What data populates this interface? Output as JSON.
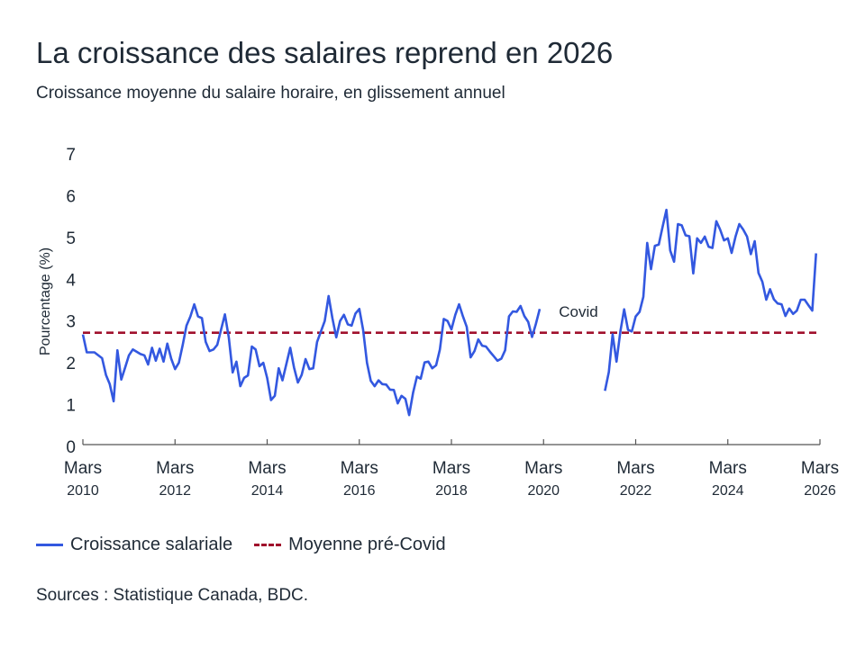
{
  "title": "La croissance des salaires reprend en 2026",
  "subtitle": "Croissance moyenne du salaire horaire, en glissement annuel",
  "source": "Sources : Statistique Canada, BDC.",
  "colors": {
    "series": "#3358e0",
    "average": "#a0102c",
    "axis": "#555555",
    "text": "#1f2a36"
  },
  "chart_data": {
    "type": "line",
    "ylabel": "Pourcentage (%)",
    "xlabel": "",
    "ylim": [
      0,
      7
    ],
    "xlim": [
      "2010-03",
      "2026-03"
    ],
    "yticks": [
      "0",
      "1",
      "2",
      "3",
      "4",
      "5",
      "6",
      "7"
    ],
    "xticks": [
      {
        "date": "2010-03",
        "label1": "Mars",
        "label2": "2010"
      },
      {
        "date": "2012-03",
        "label1": "Mars",
        "label2": "2012"
      },
      {
        "date": "2014-03",
        "label1": "Mars",
        "label2": "2014"
      },
      {
        "date": "2016-03",
        "label1": "Mars",
        "label2": "2016"
      },
      {
        "date": "2018-03",
        "label1": "Mars",
        "label2": "2018"
      },
      {
        "date": "2020-03",
        "label1": "Mars",
        "label2": "2020"
      },
      {
        "date": "2022-03",
        "label1": "Mars",
        "label2": "2022"
      },
      {
        "date": "2024-03",
        "label1": "Mars",
        "label2": "2024"
      },
      {
        "date": "2026-03",
        "label1": "Mars",
        "label2": "2026"
      }
    ],
    "grid": false,
    "legend_position": "bottom-left",
    "annotation": {
      "text": "Covid",
      "date": "2020-07",
      "y": 3.1
    },
    "average_line": {
      "name": "Moyenne pré-Covid",
      "value": 2.72
    },
    "series": [
      {
        "name": "Croissance salariale",
        "segments": [
          [
            [
              "2010-03",
              2.68
            ],
            [
              "2010-04",
              2.25
            ],
            [
              "2010-06",
              2.25
            ],
            [
              "2010-08",
              2.11
            ],
            [
              "2010-09",
              1.71
            ],
            [
              "2010-10",
              1.49
            ],
            [
              "2010-11",
              1.08
            ],
            [
              "2010-12",
              2.3
            ],
            [
              "2011-01",
              1.6
            ],
            [
              "2011-02",
              1.89
            ],
            [
              "2011-03",
              2.18
            ],
            [
              "2011-04",
              2.32
            ],
            [
              "2011-06",
              2.21
            ],
            [
              "2011-07",
              2.18
            ],
            [
              "2011-08",
              1.96
            ],
            [
              "2011-09",
              2.36
            ],
            [
              "2011-10",
              2.05
            ],
            [
              "2011-11",
              2.34
            ],
            [
              "2011-12",
              2.03
            ],
            [
              "2012-01",
              2.46
            ],
            [
              "2012-02",
              2.1
            ],
            [
              "2012-03",
              1.85
            ],
            [
              "2012-04",
              2.0
            ],
            [
              "2012-05",
              2.43
            ],
            [
              "2012-06",
              2.89
            ],
            [
              "2012-07",
              3.11
            ],
            [
              "2012-08",
              3.4
            ],
            [
              "2012-09",
              3.11
            ],
            [
              "2012-10",
              3.07
            ],
            [
              "2012-11",
              2.5
            ],
            [
              "2012-12",
              2.28
            ],
            [
              "2013-01",
              2.32
            ],
            [
              "2013-02",
              2.43
            ],
            [
              "2013-04",
              3.16
            ],
            [
              "2013-05",
              2.61
            ],
            [
              "2013-06",
              1.77
            ],
            [
              "2013-07",
              2.03
            ],
            [
              "2013-08",
              1.44
            ],
            [
              "2013-09",
              1.64
            ],
            [
              "2013-10",
              1.7
            ],
            [
              "2013-11",
              2.39
            ],
            [
              "2013-12",
              2.32
            ],
            [
              "2014-01",
              1.92
            ],
            [
              "2014-02",
              2.0
            ],
            [
              "2014-03",
              1.64
            ],
            [
              "2014-04",
              1.11
            ],
            [
              "2014-05",
              1.21
            ],
            [
              "2014-06",
              1.87
            ],
            [
              "2014-07",
              1.58
            ],
            [
              "2014-09",
              2.36
            ],
            [
              "2014-10",
              1.89
            ],
            [
              "2014-11",
              1.53
            ],
            [
              "2014-12",
              1.71
            ],
            [
              "2015-01",
              2.09
            ],
            [
              "2015-02",
              1.85
            ],
            [
              "2015-03",
              1.87
            ],
            [
              "2015-04",
              2.5
            ],
            [
              "2015-06",
              3.0
            ],
            [
              "2015-07",
              3.6
            ],
            [
              "2015-08",
              3.07
            ],
            [
              "2015-09",
              2.61
            ],
            [
              "2015-10",
              3.0
            ],
            [
              "2015-11",
              3.15
            ],
            [
              "2015-12",
              2.92
            ],
            [
              "2016-01",
              2.89
            ],
            [
              "2016-02",
              3.18
            ],
            [
              "2016-03",
              3.29
            ],
            [
              "2016-04",
              2.79
            ],
            [
              "2016-05",
              2.0
            ],
            [
              "2016-06",
              1.57
            ],
            [
              "2016-07",
              1.44
            ],
            [
              "2016-08",
              1.58
            ],
            [
              "2016-09",
              1.49
            ],
            [
              "2016-10",
              1.48
            ],
            [
              "2016-11",
              1.36
            ],
            [
              "2016-12",
              1.35
            ],
            [
              "2017-01",
              1.03
            ],
            [
              "2017-02",
              1.21
            ],
            [
              "2017-03",
              1.14
            ],
            [
              "2017-04",
              0.75
            ],
            [
              "2017-05",
              1.28
            ],
            [
              "2017-06",
              1.67
            ],
            [
              "2017-07",
              1.62
            ],
            [
              "2017-08",
              2.01
            ],
            [
              "2017-09",
              2.03
            ],
            [
              "2017-10",
              1.87
            ],
            [
              "2017-11",
              1.94
            ],
            [
              "2017-12",
              2.32
            ],
            [
              "2018-01",
              3.05
            ],
            [
              "2018-02",
              3.0
            ],
            [
              "2018-03",
              2.8
            ],
            [
              "2018-04",
              3.15
            ],
            [
              "2018-05",
              3.4
            ],
            [
              "2018-06",
              3.11
            ],
            [
              "2018-07",
              2.86
            ],
            [
              "2018-08",
              2.13
            ],
            [
              "2018-09",
              2.28
            ],
            [
              "2018-10",
              2.56
            ],
            [
              "2018-11",
              2.41
            ],
            [
              "2018-12",
              2.39
            ],
            [
              "2019-01",
              2.27
            ],
            [
              "2019-02",
              2.16
            ],
            [
              "2019-03",
              2.05
            ],
            [
              "2019-04",
              2.1
            ],
            [
              "2019-05",
              2.3
            ],
            [
              "2019-06",
              3.11
            ],
            [
              "2019-07",
              3.23
            ],
            [
              "2019-08",
              3.22
            ],
            [
              "2019-09",
              3.36
            ],
            [
              "2019-10",
              3.12
            ],
            [
              "2019-11",
              2.98
            ],
            [
              "2019-12",
              2.62
            ],
            [
              "2020-01",
              2.93
            ],
            [
              "2020-02",
              3.29
            ]
          ],
          [
            [
              "2021-07",
              1.33
            ],
            [
              "2021-08",
              1.78
            ],
            [
              "2021-09",
              2.68
            ],
            [
              "2021-10",
              2.03
            ],
            [
              "2021-11",
              2.75
            ],
            [
              "2021-12",
              3.28
            ],
            [
              "2022-01",
              2.79
            ],
            [
              "2022-02",
              2.75
            ],
            [
              "2022-03",
              3.11
            ],
            [
              "2022-04",
              3.22
            ],
            [
              "2022-05",
              3.58
            ],
            [
              "2022-06",
              4.87
            ],
            [
              "2022-07",
              4.24
            ],
            [
              "2022-08",
              4.8
            ],
            [
              "2022-09",
              4.83
            ],
            [
              "2022-10",
              5.25
            ],
            [
              "2022-11",
              5.66
            ],
            [
              "2022-12",
              4.69
            ],
            [
              "2023-01",
              4.42
            ],
            [
              "2023-02",
              5.32
            ],
            [
              "2023-03",
              5.29
            ],
            [
              "2023-04",
              5.05
            ],
            [
              "2023-05",
              5.03
            ],
            [
              "2023-06",
              4.14
            ],
            [
              "2023-07",
              4.98
            ],
            [
              "2023-08",
              4.87
            ],
            [
              "2023-09",
              5.02
            ],
            [
              "2023-10",
              4.78
            ],
            [
              "2023-11",
              4.75
            ],
            [
              "2023-12",
              5.39
            ],
            [
              "2024-01",
              5.19
            ],
            [
              "2024-02",
              4.93
            ],
            [
              "2024-03",
              4.98
            ],
            [
              "2024-04",
              4.63
            ],
            [
              "2024-05",
              5.02
            ],
            [
              "2024-06",
              5.32
            ],
            [
              "2024-07",
              5.19
            ],
            [
              "2024-08",
              5.02
            ],
            [
              "2024-09",
              4.6
            ],
            [
              "2024-10",
              4.91
            ],
            [
              "2024-11",
              4.15
            ],
            [
              "2024-12",
              3.94
            ],
            [
              "2025-01",
              3.51
            ],
            [
              "2025-02",
              3.76
            ],
            [
              "2025-03",
              3.52
            ],
            [
              "2025-04",
              3.42
            ],
            [
              "2025-05",
              3.4
            ],
            [
              "2025-06",
              3.12
            ],
            [
              "2025-07",
              3.3
            ],
            [
              "2025-08",
              3.17
            ],
            [
              "2025-09",
              3.25
            ],
            [
              "2025-10",
              3.51
            ],
            [
              "2025-11",
              3.51
            ],
            [
              "2025-12",
              3.38
            ],
            [
              "2026-01",
              3.25
            ],
            [
              "2026-02",
              4.62
            ]
          ]
        ]
      }
    ]
  }
}
